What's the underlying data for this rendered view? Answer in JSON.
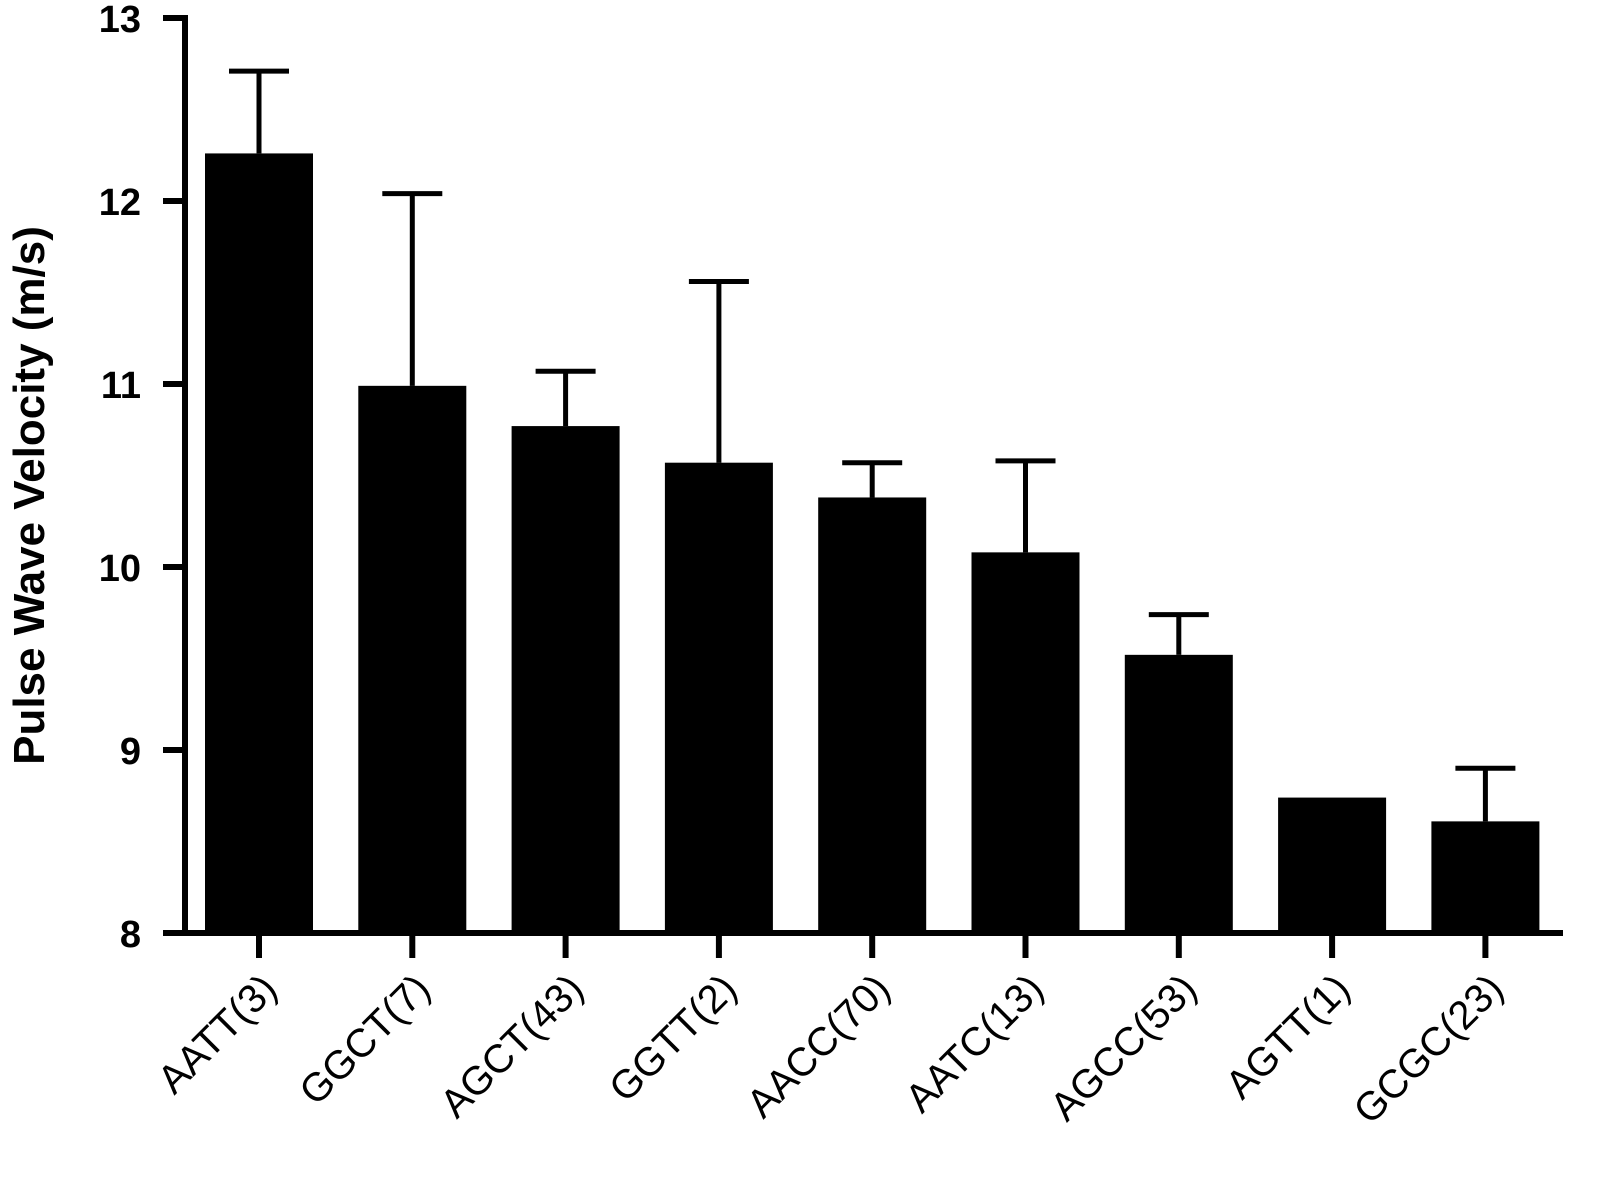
{
  "chart_data": {
    "type": "bar",
    "title": "",
    "xlabel": "",
    "ylabel": "Pulse Wave Velocity (m/s)",
    "ylim": [
      8,
      13
    ],
    "yticks": [
      "8",
      "9",
      "10",
      "11",
      "12",
      "13"
    ],
    "grid": false,
    "legend": "none",
    "bar_color": "#000000",
    "categories": [
      "AATT(3)",
      "GGCT(7)",
      "AGCT(43)",
      "GGTT(2)",
      "AACC(70)",
      "AATC(13)",
      "AGCC(53)",
      "AGTT(1)",
      "GCGC(23)"
    ],
    "values": [
      12.26,
      10.99,
      10.77,
      10.57,
      10.38,
      10.08,
      9.52,
      8.74,
      8.61
    ],
    "error_upper": [
      0.45,
      1.05,
      0.3,
      0.99,
      0.19,
      0.5,
      0.22,
      0.0,
      0.29
    ]
  }
}
